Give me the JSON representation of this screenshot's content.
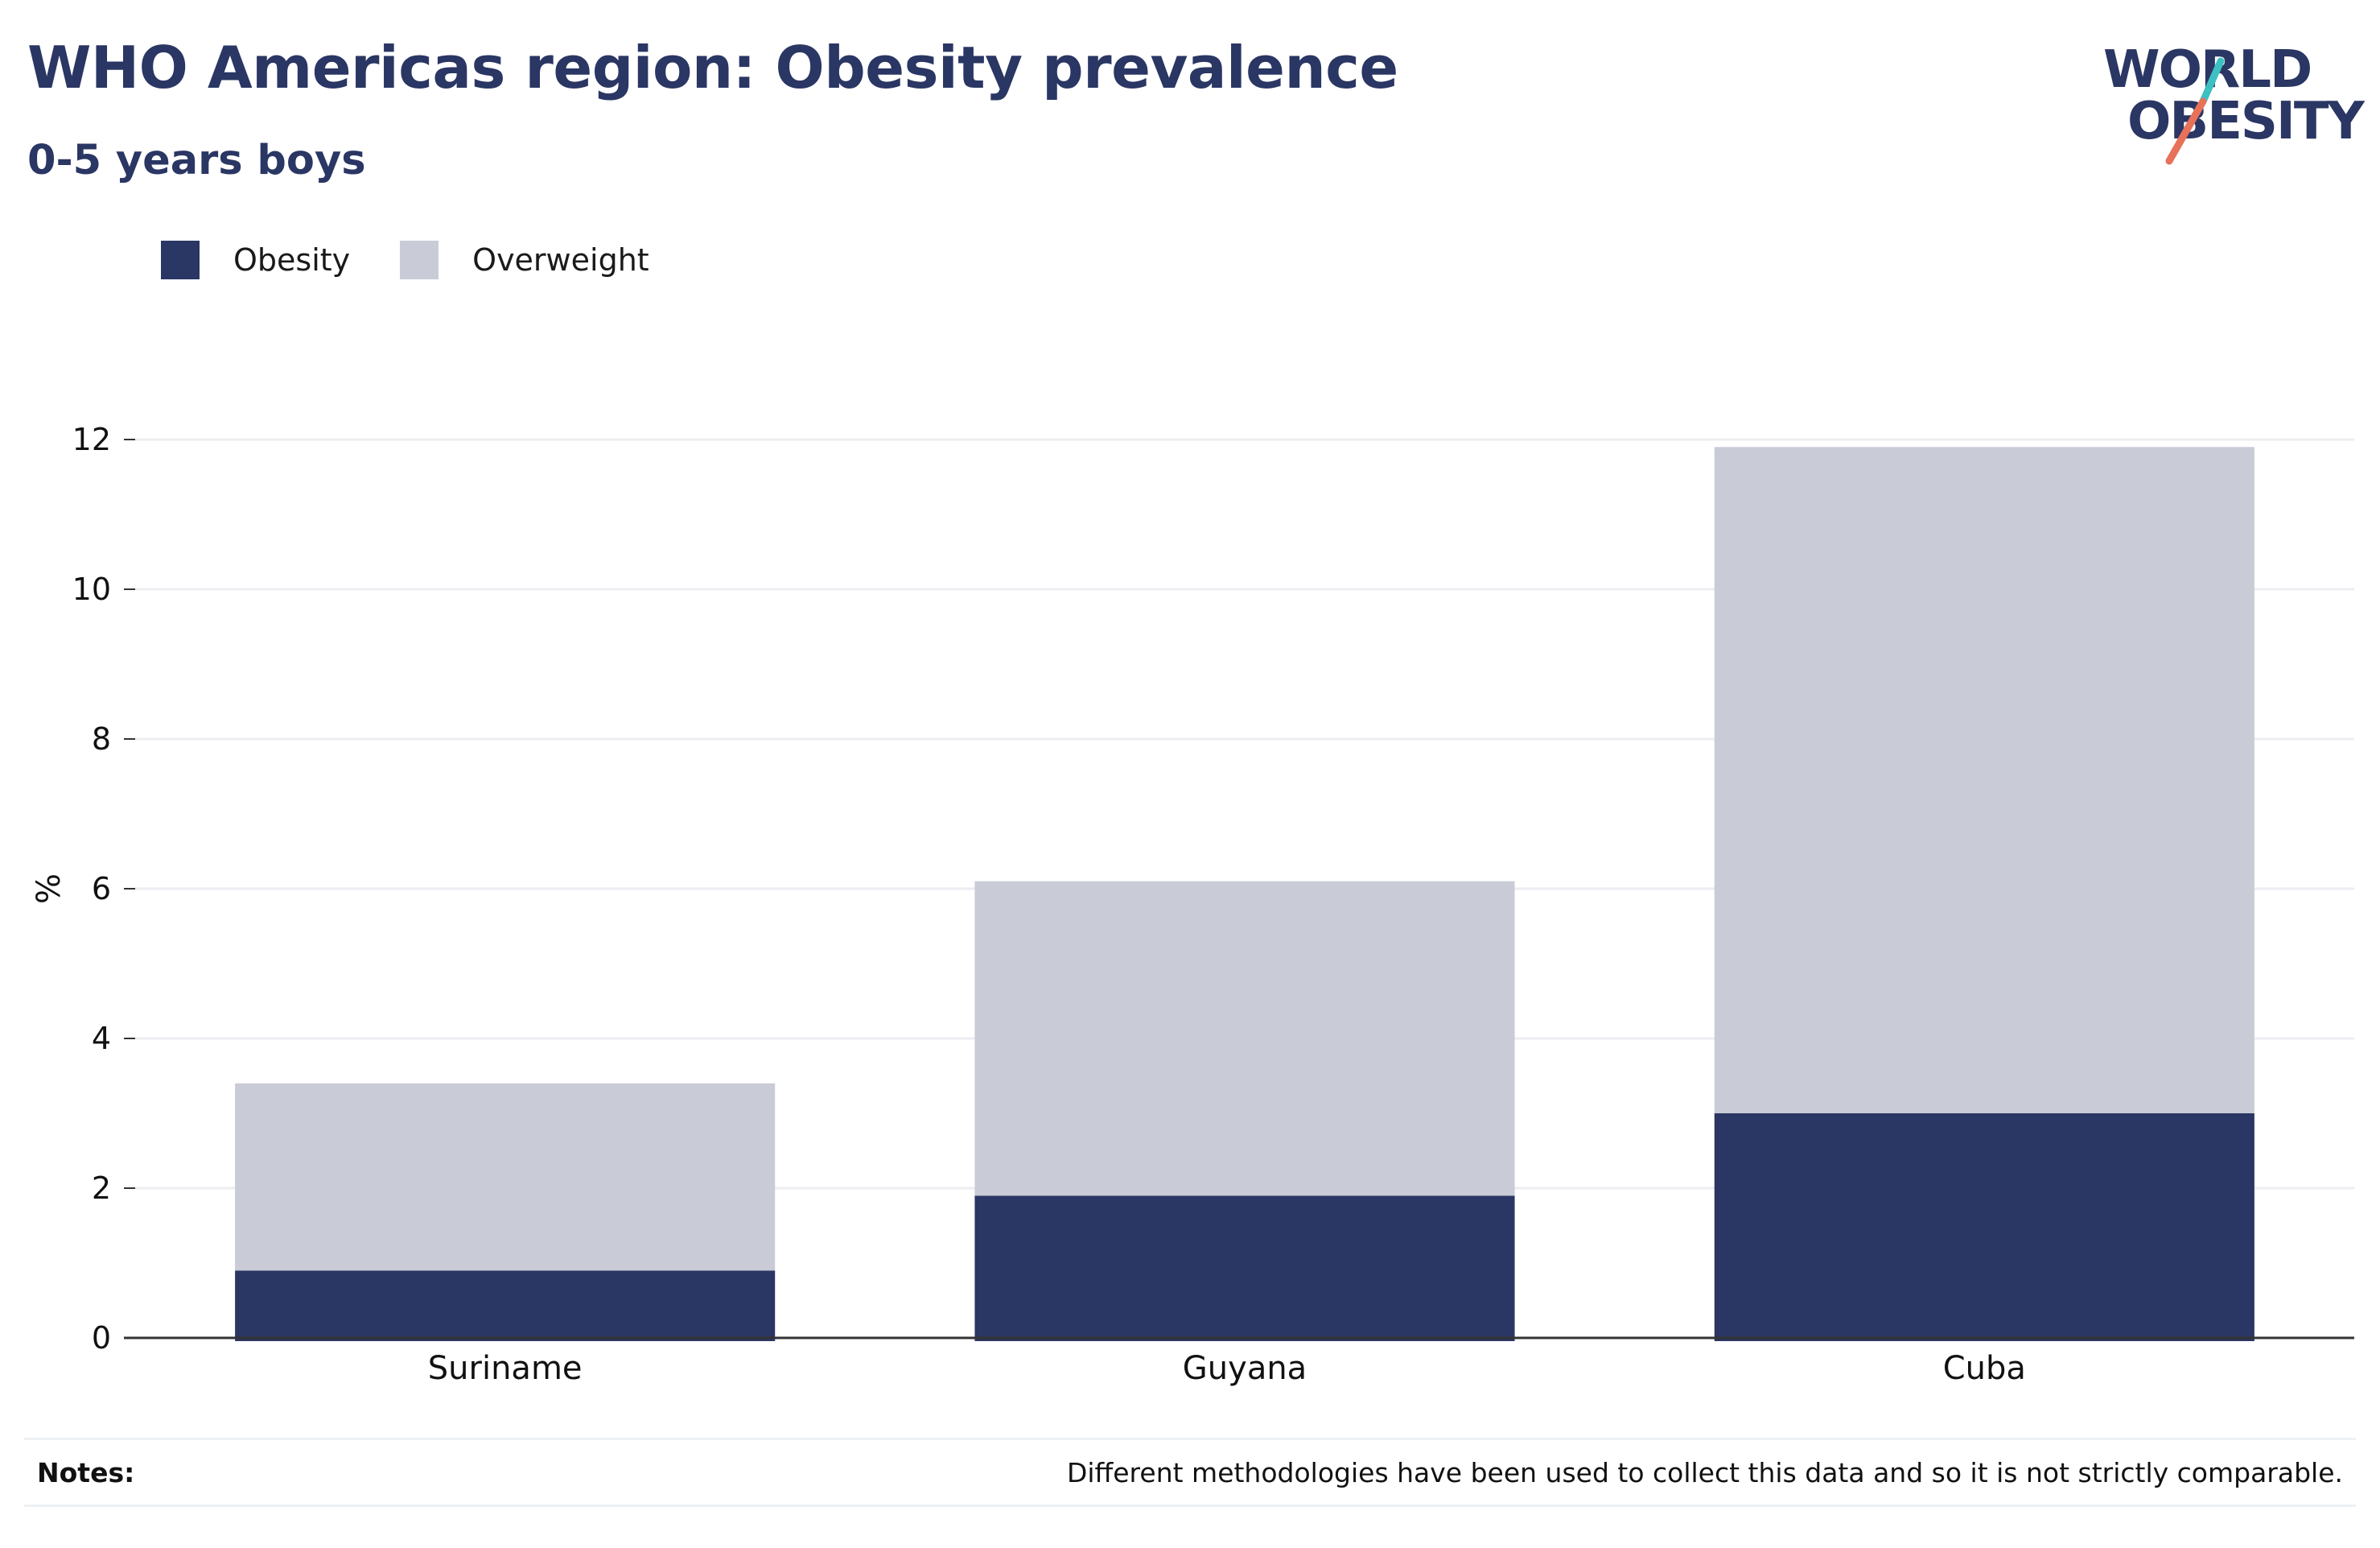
{
  "header": {
    "title": "WHO Americas region: Obesity prevalence",
    "subtitle": "0-5 years boys"
  },
  "logo": {
    "line1": "WORLD",
    "line2": "OBESITY",
    "slash_colors": [
      "#3ebfc2",
      "#e8715a"
    ]
  },
  "legend": {
    "items": [
      {
        "label": "Obesity",
        "color": "#2a3663"
      },
      {
        "label": "Overweight",
        "color": "#c9cbd6"
      }
    ]
  },
  "chart_data": {
    "type": "bar",
    "stacked": true,
    "categories": [
      "Suriname",
      "Guyana",
      "Cuba"
    ],
    "series": [
      {
        "name": "Obesity",
        "values": [
          0.9,
          1.9,
          3.0
        ],
        "color": "#2a3663"
      },
      {
        "name": "Overweight",
        "values": [
          2.5,
          4.2,
          8.9
        ],
        "color": "#c9cbd6"
      }
    ],
    "title": "WHO Americas region: Obesity prevalence",
    "subtitle": "0-5 years boys",
    "xlabel": "",
    "ylabel": "%",
    "ylim": [
      0,
      12
    ],
    "yticks": [
      0,
      2,
      4,
      6,
      8,
      10,
      12
    ],
    "grid": true,
    "legend_position": "top-left"
  },
  "notes": {
    "label": "Notes:",
    "text": "Different methodologies have been used to collect this data and so it is not strictly comparable."
  }
}
